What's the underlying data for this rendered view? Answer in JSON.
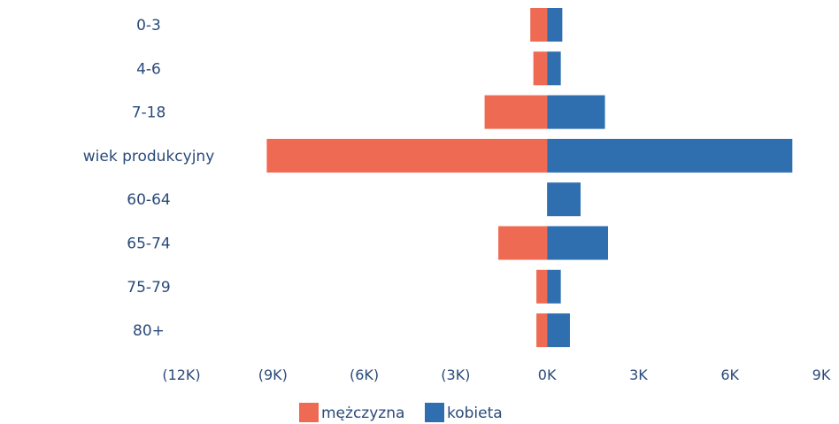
{
  "chart_data": {
    "type": "bar",
    "orientation": "horizontal",
    "stacked": "diverging",
    "categories": [
      "0-3",
      "4-6",
      "7-18",
      "wiek produkcyjny",
      "60-64",
      "65-74",
      "75-79",
      "80+"
    ],
    "series": [
      {
        "name": "mężczyzna",
        "color": "#ef6a52",
        "values": [
          -550,
          -450,
          -2050,
          -9200,
          0,
          -1600,
          -350,
          -350
        ]
      },
      {
        "name": "kobieta",
        "color": "#2f6fb0",
        "values": [
          500,
          450,
          1900,
          8050,
          1100,
          2000,
          450,
          750
        ]
      }
    ],
    "xlim": [
      -12000,
      9000
    ],
    "xticks": [
      {
        "value": -12000,
        "label": "(12K)"
      },
      {
        "value": -9000,
        "label": "(9K)"
      },
      {
        "value": -6000,
        "label": "(6K)"
      },
      {
        "value": -3000,
        "label": "(3K)"
      },
      {
        "value": 0,
        "label": "0K"
      },
      {
        "value": 3000,
        "label": "3K"
      },
      {
        "value": 6000,
        "label": "6K"
      },
      {
        "value": 9000,
        "label": "9K"
      }
    ],
    "legend_position": "bottom",
    "grid": false
  }
}
